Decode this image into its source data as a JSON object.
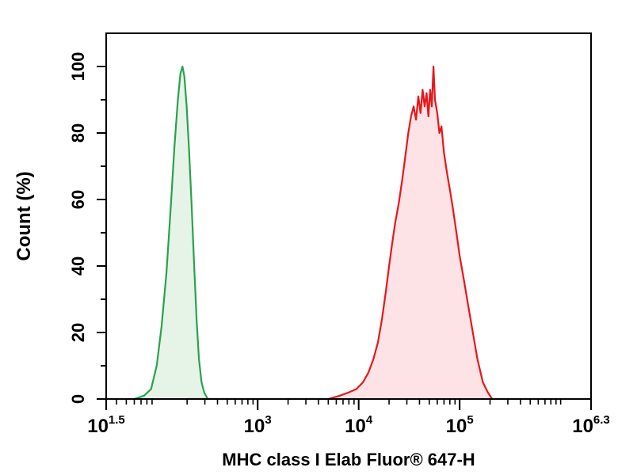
{
  "chart_data": {
    "type": "area",
    "xscale": "log",
    "xlim": [
      31.6,
      2000000
    ],
    "ylim": [
      0,
      110
    ],
    "xlabel": "MHC class I Elab Fluor® 647-H",
    "ylabel": "Count (%)",
    "x_tick_labels": [
      {
        "value": 31.6,
        "base": "10",
        "exp": "1.5"
      },
      {
        "value": 1000,
        "base": "10",
        "exp": "3"
      },
      {
        "value": 10000,
        "base": "10",
        "exp": "4"
      },
      {
        "value": 100000,
        "base": "10",
        "exp": "5"
      },
      {
        "value": 2000000,
        "base": "10",
        "exp": "6.3"
      }
    ],
    "y_ticks": [
      0,
      20,
      40,
      60,
      80,
      100
    ],
    "y_tick_labels": [
      "0",
      "20",
      "40",
      "60",
      "80",
      "100"
    ],
    "grid": false,
    "series": [
      {
        "line_color": "#2aa14f",
        "fill_color": "#e6f4e8",
        "points": [
          [
            60,
            0
          ],
          [
            75,
            1
          ],
          [
            88,
            3
          ],
          [
            100,
            10
          ],
          [
            112,
            22
          ],
          [
            125,
            38
          ],
          [
            138,
            58
          ],
          [
            150,
            76
          ],
          [
            162,
            90
          ],
          [
            172,
            98
          ],
          [
            180,
            100
          ],
          [
            188,
            97
          ],
          [
            198,
            88
          ],
          [
            210,
            74
          ],
          [
            222,
            58
          ],
          [
            235,
            40
          ],
          [
            248,
            24
          ],
          [
            262,
            12
          ],
          [
            278,
            5
          ],
          [
            295,
            2
          ],
          [
            320,
            0
          ]
        ]
      },
      {
        "line_color": "#e8161b",
        "fill_color": "#fde3e5",
        "points": [
          [
            200,
            0
          ],
          [
            5000,
            0
          ],
          [
            6500,
            1
          ],
          [
            8000,
            2
          ],
          [
            9500,
            3
          ],
          [
            11000,
            5
          ],
          [
            12500,
            8
          ],
          [
            14000,
            12
          ],
          [
            15500,
            17
          ],
          [
            17000,
            24
          ],
          [
            18500,
            32
          ],
          [
            20000,
            40
          ],
          [
            21500,
            47
          ],
          [
            23000,
            53
          ],
          [
            25000,
            59
          ],
          [
            27000,
            66
          ],
          [
            29000,
            73
          ],
          [
            31000,
            80
          ],
          [
            33000,
            85
          ],
          [
            35000,
            88
          ],
          [
            37000,
            84
          ],
          [
            39000,
            91
          ],
          [
            41000,
            86
          ],
          [
            43000,
            93
          ],
          [
            45000,
            88
          ],
          [
            47000,
            92
          ],
          [
            49000,
            85
          ],
          [
            51000,
            93
          ],
          [
            53000,
            88
          ],
          [
            55000,
            100
          ],
          [
            57000,
            90
          ],
          [
            60000,
            86
          ],
          [
            63000,
            80
          ],
          [
            66000,
            82
          ],
          [
            70000,
            74
          ],
          [
            75000,
            68
          ],
          [
            80000,
            63
          ],
          [
            85000,
            58
          ],
          [
            90000,
            53
          ],
          [
            95000,
            48
          ],
          [
            100000,
            43
          ],
          [
            110000,
            36
          ],
          [
            120000,
            29
          ],
          [
            135000,
            20
          ],
          [
            150000,
            12
          ],
          [
            170000,
            5
          ],
          [
            190000,
            2
          ],
          [
            210000,
            0
          ]
        ]
      }
    ]
  }
}
